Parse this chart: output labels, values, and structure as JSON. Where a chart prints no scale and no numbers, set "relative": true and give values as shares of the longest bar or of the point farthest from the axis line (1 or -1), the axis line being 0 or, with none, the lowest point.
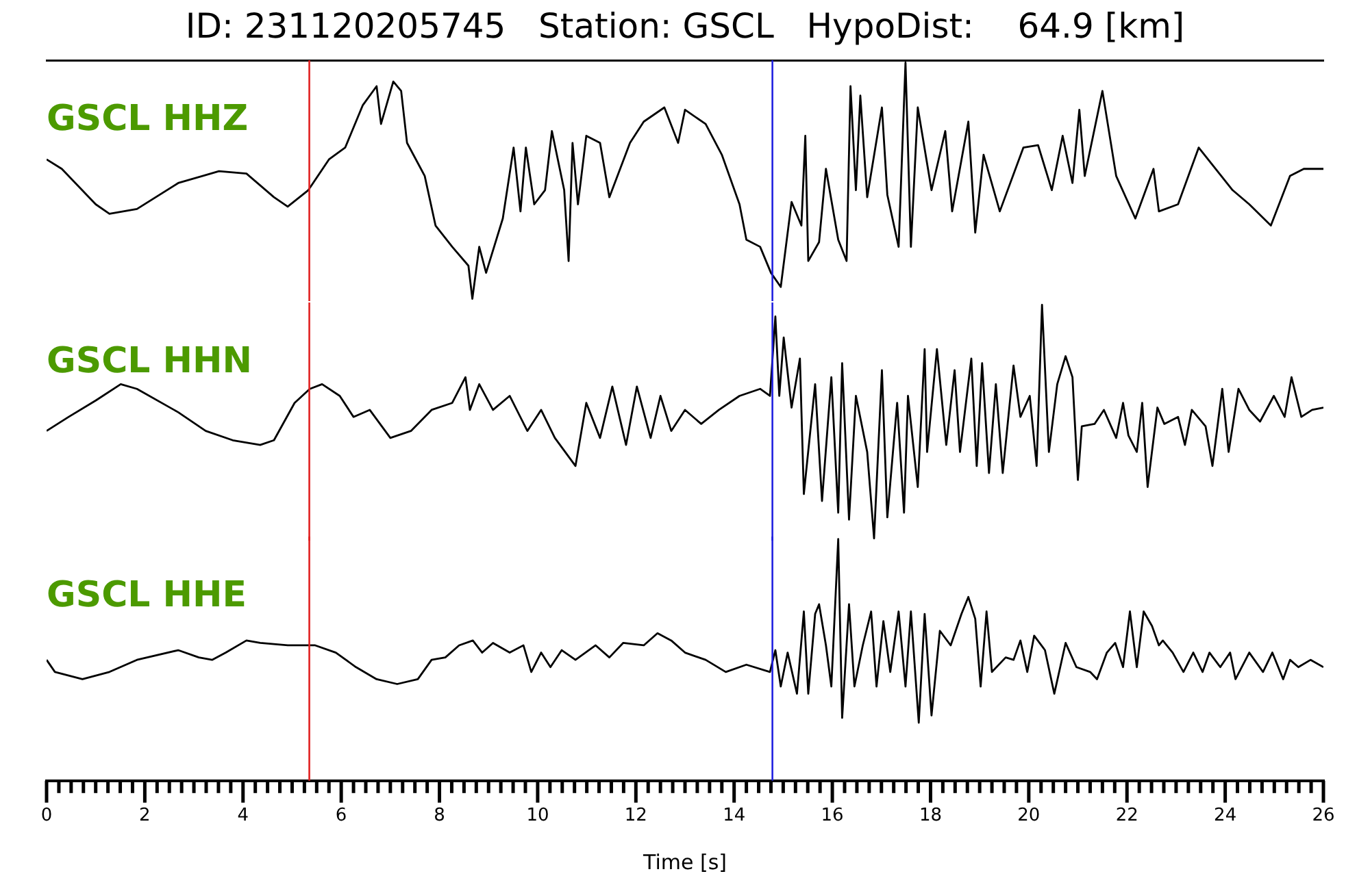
{
  "chart_data": [
    {
      "type": "line",
      "title": "ID: 231120205745   Station: GSCL   HypoDist:    64.9 [km]",
      "relative": true,
      "tick_labels": false,
      "xlim": [
        0,
        26
      ],
      "series": [
        {
          "name": "GSCL HHZ",
          "color": "#000000",
          "x": [
            0,
            0.31,
            1.0,
            1.28,
            1.84,
            2.68,
            3.51,
            4.07,
            4.63,
            4.91,
            5.33,
            5.75,
            6.08,
            6.44,
            6.72,
            6.81,
            7.06,
            7.22,
            7.34,
            7.7,
            7.92,
            8.26,
            8.59,
            8.67,
            8.81,
            8.95,
            9.29,
            9.51,
            9.65,
            9.76,
            9.93,
            10.15,
            10.29,
            10.54,
            10.63,
            10.71,
            10.82,
            10.99,
            11.27,
            11.46,
            11.88,
            12.16,
            12.58,
            12.86,
            13.0,
            13.42,
            13.75,
            14.11,
            14.25,
            14.53,
            14.75,
            14.95,
            15.17,
            15.37,
            15.45,
            15.51,
            15.73,
            15.87,
            16.12,
            16.29,
            16.37,
            16.48,
            16.57,
            16.71,
            17.01,
            17.12,
            17.35,
            17.49,
            17.6,
            17.74,
            18.02,
            18.3,
            18.44,
            18.77,
            18.91,
            19.08,
            19.41,
            19.89,
            20.19,
            20.47,
            20.69,
            20.89,
            21.03,
            21.14,
            21.5,
            21.78,
            22.17,
            22.54,
            22.65,
            23.04,
            23.46,
            24.15,
            24.49,
            24.93,
            25.32,
            25.6,
            26.0
          ],
          "values": [
            0.59,
            0.55,
            0.4,
            0.36,
            0.38,
            0.49,
            0.54,
            0.53,
            0.43,
            0.39,
            0.46,
            0.59,
            0.64,
            0.82,
            0.9,
            0.74,
            0.92,
            0.88,
            0.66,
            0.52,
            0.31,
            0.22,
            0.14,
            0.0,
            0.22,
            0.11,
            0.34,
            0.64,
            0.37,
            0.64,
            0.4,
            0.46,
            0.71,
            0.46,
            0.16,
            0.66,
            0.4,
            0.69,
            0.66,
            0.43,
            0.66,
            0.75,
            0.81,
            0.66,
            0.8,
            0.74,
            0.61,
            0.4,
            0.25,
            0.22,
            0.11,
            0.05,
            0.41,
            0.31,
            0.69,
            0.16,
            0.24,
            0.55,
            0.25,
            0.16,
            0.9,
            0.46,
            0.86,
            0.43,
            0.81,
            0.44,
            0.22,
            1.0,
            0.22,
            0.81,
            0.46,
            0.71,
            0.37,
            0.75,
            0.28,
            0.61,
            0.37,
            0.64,
            0.65,
            0.46,
            0.69,
            0.49,
            0.8,
            0.52,
            0.88,
            0.52,
            0.34,
            0.55,
            0.37,
            0.4,
            0.64,
            0.46,
            0.4,
            0.31,
            0.52,
            0.55,
            0.55
          ]
        }
      ],
      "ref_lines": [
        {
          "axis": "x",
          "value": 5.35,
          "color": "#e02020"
        },
        {
          "axis": "x",
          "value": 14.78,
          "color": "#2020e0"
        }
      ]
    },
    {
      "type": "line",
      "relative": true,
      "tick_labels": false,
      "xlim": [
        0,
        26
      ],
      "series": [
        {
          "name": "GSCL HHN",
          "color": "#000000",
          "x": [
            0,
            0.45,
            1.0,
            1.51,
            1.84,
            2.68,
            3.24,
            3.79,
            4.35,
            4.63,
            5.05,
            5.36,
            5.61,
            5.97,
            6.25,
            6.58,
            7.0,
            7.42,
            7.84,
            8.26,
            8.53,
            8.62,
            8.81,
            9.09,
            9.43,
            9.79,
            10.07,
            10.35,
            10.77,
            10.99,
            11.27,
            11.52,
            11.8,
            12.02,
            12.3,
            12.5,
            12.72,
            13.0,
            13.33,
            13.69,
            14.11,
            14.53,
            14.73,
            14.84,
            14.92,
            15.01,
            15.17,
            15.34,
            15.42,
            15.65,
            15.79,
            15.98,
            16.12,
            16.2,
            16.34,
            16.48,
            16.71,
            16.85,
            17.01,
            17.12,
            17.32,
            17.46,
            17.54,
            17.74,
            17.88,
            17.93,
            18.13,
            18.32,
            18.49,
            18.6,
            18.83,
            18.94,
            19.05,
            19.19,
            19.33,
            19.47,
            19.69,
            19.83,
            20.02,
            20.16,
            20.27,
            20.41,
            20.58,
            20.75,
            20.89,
            21.0,
            21.08,
            21.34,
            21.53,
            21.78,
            21.92,
            22.03,
            22.2,
            22.31,
            22.42,
            22.62,
            22.76,
            23.04,
            23.18,
            23.32,
            23.6,
            23.74,
            23.94,
            24.07,
            24.27,
            24.49,
            24.71,
            24.99,
            25.21,
            25.35,
            25.55,
            25.77,
            26.0
          ],
          "values": [
            0.46,
            0.52,
            0.59,
            0.66,
            0.64,
            0.54,
            0.46,
            0.42,
            0.4,
            0.42,
            0.58,
            0.64,
            0.66,
            0.61,
            0.52,
            0.55,
            0.43,
            0.46,
            0.55,
            0.58,
            0.69,
            0.55,
            0.66,
            0.55,
            0.61,
            0.46,
            0.55,
            0.43,
            0.31,
            0.58,
            0.43,
            0.65,
            0.4,
            0.65,
            0.43,
            0.61,
            0.46,
            0.55,
            0.49,
            0.55,
            0.61,
            0.64,
            0.61,
            0.95,
            0.61,
            0.86,
            0.56,
            0.77,
            0.19,
            0.66,
            0.16,
            0.69,
            0.11,
            0.75,
            0.08,
            0.61,
            0.37,
            0.0,
            0.72,
            0.09,
            0.58,
            0.11,
            0.61,
            0.22,
            0.81,
            0.37,
            0.81,
            0.4,
            0.72,
            0.37,
            0.77,
            0.31,
            0.75,
            0.28,
            0.66,
            0.28,
            0.74,
            0.52,
            0.61,
            0.31,
            1.0,
            0.37,
            0.66,
            0.78,
            0.69,
            0.25,
            0.48,
            0.49,
            0.55,
            0.43,
            0.58,
            0.44,
            0.37,
            0.58,
            0.22,
            0.56,
            0.49,
            0.52,
            0.4,
            0.55,
            0.48,
            0.31,
            0.64,
            0.37,
            0.64,
            0.55,
            0.5,
            0.61,
            0.52,
            0.69,
            0.52,
            0.55,
            0.56
          ]
        }
      ],
      "ref_lines": [
        {
          "axis": "x",
          "value": 5.35,
          "color": "#e02020"
        },
        {
          "axis": "x",
          "value": 14.78,
          "color": "#2020e0"
        }
      ]
    },
    {
      "type": "line",
      "relative": true,
      "tick_labels": "x",
      "xlim": [
        0,
        26
      ],
      "xlabel": "Time [s]",
      "xticks": [
        0,
        {
          "value": 0.25,
          "label": null
        },
        {
          "value": 0.5,
          "label": null
        },
        {
          "value": 0.75,
          "label": null
        },
        {
          "value": 1,
          "label": null
        },
        {
          "value": 1.25,
          "label": null
        },
        {
          "value": 1.5,
          "label": null
        },
        {
          "value": 1.75,
          "label": null
        },
        2,
        {
          "value": 2.25,
          "label": null
        },
        {
          "value": 2.5,
          "label": null
        },
        {
          "value": 2.75,
          "label": null
        },
        {
          "value": 3,
          "label": null
        },
        {
          "value": 3.25,
          "label": null
        },
        {
          "value": 3.5,
          "label": null
        },
        {
          "value": 3.75,
          "label": null
        },
        4,
        {
          "value": 4.25,
          "label": null
        },
        {
          "value": 4.5,
          "label": null
        },
        {
          "value": 4.75,
          "label": null
        },
        {
          "value": 5,
          "label": null
        },
        {
          "value": 5.25,
          "label": null
        },
        {
          "value": 5.5,
          "label": null
        },
        {
          "value": 5.75,
          "label": null
        },
        6,
        {
          "value": 6.25,
          "label": null
        },
        {
          "value": 6.5,
          "label": null
        },
        {
          "value": 6.75,
          "label": null
        },
        {
          "value": 7,
          "label": null
        },
        {
          "value": 7.25,
          "label": null
        },
        {
          "value": 7.5,
          "label": null
        },
        {
          "value": 7.75,
          "label": null
        },
        8,
        {
          "value": 8.25,
          "label": null
        },
        {
          "value": 8.5,
          "label": null
        },
        {
          "value": 8.75,
          "label": null
        },
        {
          "value": 9,
          "label": null
        },
        {
          "value": 9.25,
          "label": null
        },
        {
          "value": 9.5,
          "label": null
        },
        {
          "value": 9.75,
          "label": null
        },
        10,
        {
          "value": 10.25,
          "label": null
        },
        {
          "value": 10.5,
          "label": null
        },
        {
          "value": 10.75,
          "label": null
        },
        {
          "value": 11,
          "label": null
        },
        {
          "value": 11.25,
          "label": null
        },
        {
          "value": 11.5,
          "label": null
        },
        {
          "value": 11.75,
          "label": null
        },
        12,
        {
          "value": 12.25,
          "label": null
        },
        {
          "value": 12.5,
          "label": null
        },
        {
          "value": 12.75,
          "label": null
        },
        {
          "value": 13,
          "label": null
        },
        {
          "value": 13.25,
          "label": null
        },
        {
          "value": 13.5,
          "label": null
        },
        {
          "value": 13.75,
          "label": null
        },
        14,
        {
          "value": 14.25,
          "label": null
        },
        {
          "value": 14.5,
          "label": null
        },
        {
          "value": 14.75,
          "label": null
        },
        {
          "value": 15,
          "label": null
        },
        {
          "value": 15.25,
          "label": null
        },
        {
          "value": 15.5,
          "label": null
        },
        {
          "value": 15.75,
          "label": null
        },
        16,
        {
          "value": 16.25,
          "label": null
        },
        {
          "value": 16.5,
          "label": null
        },
        {
          "value": 16.75,
          "label": null
        },
        {
          "value": 17,
          "label": null
        },
        {
          "value": 17.25,
          "label": null
        },
        {
          "value": 17.5,
          "label": null
        },
        {
          "value": 17.75,
          "label": null
        },
        18,
        {
          "value": 18.25,
          "label": null
        },
        {
          "value": 18.5,
          "label": null
        },
        {
          "value": 18.75,
          "label": null
        },
        {
          "value": 19,
          "label": null
        },
        {
          "value": 19.25,
          "label": null
        },
        {
          "value": 19.5,
          "label": null
        },
        {
          "value": 19.75,
          "label": null
        },
        20,
        {
          "value": 20.25,
          "label": null
        },
        {
          "value": 20.5,
          "label": null
        },
        {
          "value": 20.75,
          "label": null
        },
        {
          "value": 21,
          "label": null
        },
        {
          "value": 21.25,
          "label": null
        },
        {
          "value": 21.5,
          "label": null
        },
        {
          "value": 21.75,
          "label": null
        },
        22,
        {
          "value": 22.25,
          "label": null
        },
        {
          "value": 22.5,
          "label": null
        },
        {
          "value": 22.75,
          "label": null
        },
        {
          "value": 23,
          "label": null
        },
        {
          "value": 23.25,
          "label": null
        },
        {
          "value": 23.5,
          "label": null
        },
        {
          "value": 23.75,
          "label": null
        },
        24,
        {
          "value": 24.25,
          "label": null
        },
        {
          "value": 24.5,
          "label": null
        },
        {
          "value": 24.75,
          "label": null
        },
        {
          "value": 25,
          "label": null
        },
        {
          "value": 25.25,
          "label": null
        },
        {
          "value": 25.5,
          "label": null
        },
        {
          "value": 25.75,
          "label": null
        },
        26
      ],
      "series": [
        {
          "name": "GSCL HHE",
          "color": "#000000",
          "x": [
            0,
            0.17,
            0.73,
            1.28,
            1.84,
            2.68,
            3.1,
            3.37,
            3.65,
            4.07,
            4.35,
            4.91,
            5.47,
            5.89,
            6.3,
            6.72,
            7.14,
            7.56,
            7.84,
            8.12,
            8.4,
            8.68,
            8.87,
            9.09,
            9.43,
            9.71,
            9.87,
            10.07,
            10.26,
            10.49,
            10.77,
            11.18,
            11.46,
            11.74,
            12.16,
            12.44,
            12.72,
            13.0,
            13.42,
            13.83,
            14.25,
            14.73,
            14.84,
            14.95,
            15.09,
            15.28,
            15.42,
            15.51,
            15.65,
            15.73,
            15.87,
            15.98,
            16.12,
            16.2,
            16.34,
            16.45,
            16.62,
            16.79,
            16.9,
            17.04,
            17.18,
            17.35,
            17.49,
            17.6,
            17.76,
            17.88,
            18.02,
            18.19,
            18.41,
            18.63,
            18.77,
            18.91,
            19.02,
            19.14,
            19.25,
            19.53,
            19.69,
            19.83,
            19.97,
            20.11,
            20.33,
            20.52,
            20.75,
            20.97,
            21.25,
            21.39,
            21.59,
            21.76,
            21.92,
            22.06,
            22.2,
            22.34,
            22.51,
            22.65,
            22.73,
            22.93,
            23.15,
            23.35,
            23.54,
            23.68,
            23.9,
            24.1,
            24.21,
            24.49,
            24.77,
            24.96,
            25.18,
            25.32,
            25.49,
            25.74,
            26.0
          ],
          "values": [
            0.5,
            0.45,
            0.42,
            0.45,
            0.5,
            0.54,
            0.51,
            0.5,
            0.53,
            0.58,
            0.57,
            0.56,
            0.56,
            0.53,
            0.47,
            0.42,
            0.4,
            0.42,
            0.5,
            0.51,
            0.56,
            0.58,
            0.53,
            0.57,
            0.53,
            0.56,
            0.45,
            0.53,
            0.47,
            0.54,
            0.5,
            0.56,
            0.51,
            0.57,
            0.56,
            0.61,
            0.58,
            0.53,
            0.5,
            0.45,
            0.48,
            0.45,
            0.54,
            0.39,
            0.53,
            0.36,
            0.7,
            0.36,
            0.69,
            0.73,
            0.56,
            0.39,
            1.0,
            0.26,
            0.73,
            0.39,
            0.56,
            0.7,
            0.39,
            0.66,
            0.45,
            0.7,
            0.39,
            0.7,
            0.24,
            0.69,
            0.27,
            0.62,
            0.56,
            0.69,
            0.76,
            0.67,
            0.39,
            0.7,
            0.45,
            0.51,
            0.5,
            0.58,
            0.45,
            0.6,
            0.54,
            0.36,
            0.57,
            0.47,
            0.45,
            0.42,
            0.53,
            0.57,
            0.47,
            0.7,
            0.47,
            0.7,
            0.64,
            0.56,
            0.58,
            0.53,
            0.45,
            0.53,
            0.45,
            0.53,
            0.47,
            0.53,
            0.42,
            0.53,
            0.45,
            0.53,
            0.42,
            0.5,
            0.47,
            0.5,
            0.47
          ]
        }
      ],
      "ref_lines": [
        {
          "axis": "x",
          "value": 5.35,
          "color": "#e02020"
        },
        {
          "axis": "x",
          "value": 14.78,
          "color": "#2020e0"
        }
      ]
    }
  ]
}
